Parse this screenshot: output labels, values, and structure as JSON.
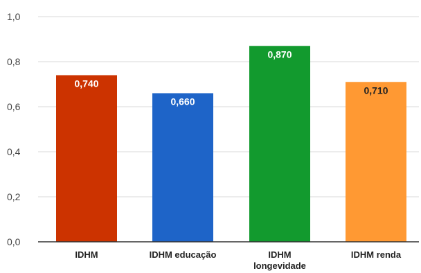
{
  "chart_data": {
    "type": "bar",
    "categories": [
      "IDHM",
      "IDHM educação",
      "IDHM longevidade",
      "IDHM renda"
    ],
    "category_label_lines": [
      [
        "IDHM"
      ],
      [
        "IDHM educação"
      ],
      [
        "IDHM",
        "longevidade"
      ],
      [
        "IDHM renda"
      ]
    ],
    "values": [
      0.74,
      0.66,
      0.87,
      0.71
    ],
    "data_labels": [
      "0,740",
      "0,660",
      "0,870",
      "0,710"
    ],
    "bar_colors": [
      "#cc3300",
      "#1e64c8",
      "#129a2e",
      "#ff9933"
    ],
    "data_label_colors": [
      "#ffffff",
      "#ffffff",
      "#ffffff",
      "#222222"
    ],
    "ylim": [
      0,
      1.0
    ],
    "yticks": [
      0,
      0.2,
      0.4,
      0.6,
      0.8,
      1.0
    ],
    "ytick_labels": [
      "0,0",
      "0,2",
      "0,4",
      "0,6",
      "0,8",
      "1,0"
    ],
    "title": "",
    "xlabel": "",
    "ylabel": "",
    "grid": true,
    "legend": "none",
    "gridline_color": "#d9d9d9",
    "baseline_color": "#333333"
  }
}
